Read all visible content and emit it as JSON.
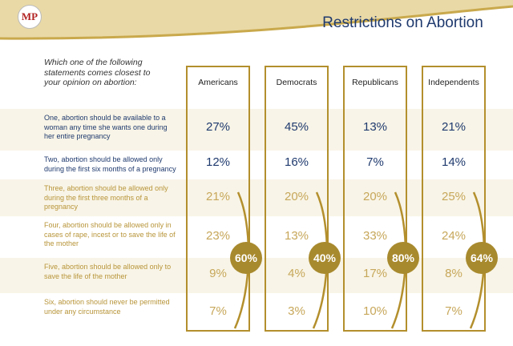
{
  "header": {
    "logo": "MP",
    "title": "Restrictions on Abortion"
  },
  "table": {
    "question": "Which one of the following statements comes closest to your opinion on abortion:",
    "columns": [
      "Americans",
      "Democrats",
      "Republicans",
      "Independents"
    ],
    "rows": [
      {
        "statement": "One, abortion should be available to a woman any time she wants one during her entire pregnancy",
        "values": [
          "27%",
          "45%",
          "13%",
          "21%"
        ]
      },
      {
        "statement": "Two, abortion should be allowed only during the first six months of a pregnancy",
        "values": [
          "12%",
          "16%",
          "7%",
          "14%"
        ]
      },
      {
        "statement": "Three, abortion should be allowed only during the first three months of a pregnancy",
        "values": [
          "21%",
          "20%",
          "20%",
          "25%"
        ]
      },
      {
        "statement": "Four, abortion should be allowed only in cases of rape, incest or to save the life of the mother",
        "values": [
          "23%",
          "13%",
          "33%",
          "24%"
        ]
      },
      {
        "statement": "Five, abortion should be allowed only to save the life of the mother",
        "values": [
          "9%",
          "4%",
          "17%",
          "8%"
        ]
      },
      {
        "statement": "Six, abortion should never be permitted under any circumstance",
        "values": [
          "7%",
          "3%",
          "10%",
          "7%"
        ]
      }
    ],
    "totals": [
      "60%",
      "40%",
      "80%",
      "64%"
    ]
  }
}
